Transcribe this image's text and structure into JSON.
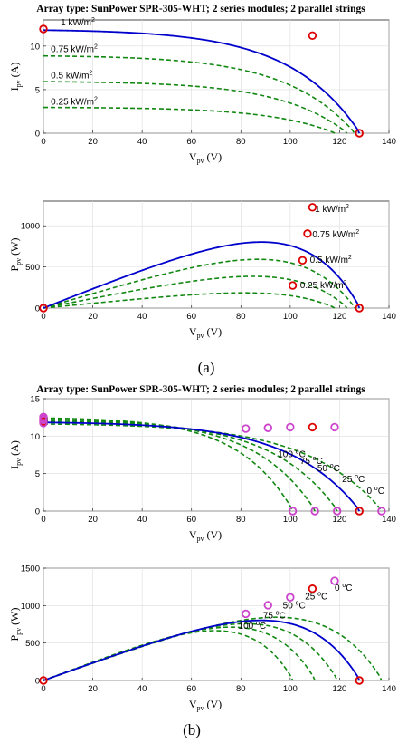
{
  "chart_data": [
    {
      "id": "a1",
      "type": "line",
      "title": "Array type: SunPower SPR-305-WHT; 2 series modules; 2 parallel strings",
      "xlabel": "V",
      "xlabel_sub": "pv",
      "xlabel_unit": " (V)",
      "ylabel": "I",
      "ylabel_sub": "pv",
      "ylabel_unit": " (A)",
      "xlim": [
        0,
        140
      ],
      "ylim": [
        0,
        13
      ],
      "xticks": [
        "0",
        "20",
        "40",
        "60",
        "80",
        "100",
        "120",
        "140"
      ],
      "yticks": [
        "0",
        "5",
        "10"
      ],
      "grid": true,
      "series": [
        {
          "name": "1 kW/m2",
          "style": "solid",
          "color": "#0000cc",
          "isc": 11.96,
          "voc": 128,
          "sharp": 4.5
        },
        {
          "name": "0.75 kW/m2",
          "style": "dashed",
          "color": "#118811",
          "isc": 8.97,
          "voc": 126,
          "sharp": 4.5
        },
        {
          "name": "0.5 kW/m2",
          "style": "dashed",
          "color": "#118811",
          "isc": 5.98,
          "voc": 123,
          "sharp": 4.5
        },
        {
          "name": "0.25 kW/m2",
          "style": "dashed",
          "color": "#118811",
          "isc": 2.99,
          "voc": 118,
          "sharp": 4.5
        }
      ],
      "markers": [
        {
          "x": 0,
          "y": 11.96,
          "color": "#dd0000"
        },
        {
          "x": 109,
          "y": 11.2,
          "color": "#dd0000"
        },
        {
          "x": 128,
          "y": 0,
          "color": "#dd0000"
        }
      ],
      "annotations": [
        {
          "text": "1 kW/m",
          "sup": "2",
          "x": 7,
          "y": 12.4
        },
        {
          "text": "0.75 kW/m",
          "sup": "2",
          "x": 3,
          "y": 9.3
        },
        {
          "text": "0.5 kW/m",
          "sup": "2",
          "x": 3,
          "y": 6.3
        },
        {
          "text": "0.25 kW/m",
          "sup": "2",
          "x": 3,
          "y": 3.3
        }
      ]
    },
    {
      "id": "a2",
      "type": "line",
      "xlabel": "V",
      "xlabel_sub": "pv",
      "xlabel_unit": " (V)",
      "ylabel": "P",
      "ylabel_sub": "pv",
      "ylabel_unit": " (W)",
      "xlim": [
        0,
        140
      ],
      "ylim": [
        0,
        1300
      ],
      "xticks": [
        "0",
        "20",
        "40",
        "60",
        "80",
        "100",
        "120",
        "140"
      ],
      "yticks": [
        "0",
        "500",
        "1000"
      ],
      "grid": true,
      "power_of": "a1",
      "markers": [
        {
          "x": 0,
          "y": 0,
          "color": "#dd0000",
          "hollow": true
        },
        {
          "x": 109,
          "y": 1225,
          "color": "#dd0000",
          "hollow": true
        },
        {
          "x": 107,
          "y": 905,
          "color": "#dd0000",
          "hollow": true
        },
        {
          "x": 105,
          "y": 580,
          "color": "#dd0000",
          "hollow": true
        },
        {
          "x": 101,
          "y": 275,
          "color": "#dd0000",
          "hollow": true
        },
        {
          "x": 128,
          "y": 0,
          "color": "#dd0000",
          "hollow": true
        }
      ],
      "annotations": [
        {
          "text": "1 kW/m",
          "sup": "2",
          "x": 110,
          "y": 1170
        },
        {
          "text": "0.75 kW/m",
          "sup": "2",
          "x": 109,
          "y": 860
        },
        {
          "text": "0.5 kW/m",
          "sup": "2",
          "x": 108,
          "y": 550
        },
        {
          "text": "0.25 kW/m",
          "sup": "2",
          "x": 104,
          "y": 245
        }
      ]
    },
    {
      "id": "b1",
      "type": "line",
      "title": "Array type: SunPower SPR-305-WHT; 2 series modules; 2 parallel strings",
      "xlabel": "V",
      "xlabel_sub": "pv",
      "xlabel_unit": " (V)",
      "ylabel": "I",
      "ylabel_sub": "pv",
      "ylabel_unit": " (A)",
      "xlim": [
        0,
        140
      ],
      "ylim": [
        0,
        15
      ],
      "xticks": [
        "0",
        "20",
        "40",
        "60",
        "80",
        "100",
        "120",
        "140"
      ],
      "yticks": [
        "0",
        "5",
        "10",
        "15"
      ],
      "grid": true,
      "series": [
        {
          "name": "25 °C",
          "style": "solid",
          "color": "#0000cc",
          "isc": 11.96,
          "voc": 128,
          "sharp": 4.5
        },
        {
          "name": "0 °C",
          "style": "dashed",
          "color": "#118811",
          "isc": 11.75,
          "voc": 137,
          "sharp": 4.5
        },
        {
          "name": "50 °C",
          "style": "dashed",
          "color": "#118811",
          "isc": 12.15,
          "voc": 119,
          "sharp": 4.5
        },
        {
          "name": "75 °C",
          "style": "dashed",
          "color": "#118811",
          "isc": 12.35,
          "voc": 110,
          "sharp": 4.5
        },
        {
          "name": "100 °C",
          "style": "dashed",
          "color": "#118811",
          "isc": 12.55,
          "voc": 101,
          "sharp": 4.5
        }
      ],
      "markers": [
        {
          "x": 0,
          "y": 11.96,
          "color": "#dd0000"
        },
        {
          "x": 0,
          "y": 11.75,
          "color": "#cc44cc"
        },
        {
          "x": 0,
          "y": 12.15,
          "color": "#cc44cc"
        },
        {
          "x": 0,
          "y": 12.35,
          "color": "#cc44cc"
        },
        {
          "x": 0,
          "y": 12.55,
          "color": "#cc44cc"
        },
        {
          "x": 109,
          "y": 11.2,
          "color": "#dd0000"
        },
        {
          "x": 128,
          "y": 0,
          "color": "#dd0000"
        },
        {
          "x": 118,
          "y": 11.2,
          "color": "#cc44cc"
        },
        {
          "x": 100,
          "y": 11.2,
          "color": "#cc44cc"
        },
        {
          "x": 91,
          "y": 11.1,
          "color": "#cc44cc"
        },
        {
          "x": 82,
          "y": 11.0,
          "color": "#cc44cc"
        },
        {
          "x": 101,
          "y": 0,
          "color": "#cc44cc"
        },
        {
          "x": 110,
          "y": 0,
          "color": "#cc44cc"
        },
        {
          "x": 119,
          "y": 0,
          "color": "#cc44cc"
        },
        {
          "x": 137,
          "y": 0,
          "color": "#cc44cc"
        }
      ],
      "annotations": [
        {
          "text": "100 ",
          "sup": "o",
          "tail": "C",
          "x": 95,
          "y": 7.2,
          "rotate": 0
        },
        {
          "text": "75 ",
          "sup": "o",
          "tail": "C",
          "x": 104,
          "y": 6.3,
          "rotate": 0
        },
        {
          "text": "50 ",
          "sup": "o",
          "tail": "C",
          "x": 111,
          "y": 5.3,
          "rotate": 0
        },
        {
          "text": "25 ",
          "sup": "o",
          "tail": "C",
          "x": 121,
          "y": 3.9,
          "rotate": 0
        },
        {
          "text": "0 ",
          "sup": "o",
          "tail": "C",
          "x": 131,
          "y": 2.3,
          "rotate": 0
        }
      ]
    },
    {
      "id": "b2",
      "type": "line",
      "xlabel": "V",
      "xlabel_sub": "pv",
      "xlabel_unit": " (V)",
      "ylabel": "P",
      "ylabel_sub": "pv",
      "ylabel_unit": " (W)",
      "xlim": [
        0,
        140
      ],
      "ylim": [
        0,
        1500
      ],
      "xticks": [
        "0",
        "20",
        "40",
        "60",
        "80",
        "100",
        "120",
        "140"
      ],
      "yticks": [
        "0",
        "500",
        "1000",
        "1500"
      ],
      "grid": true,
      "power_of": "b1",
      "markers": [
        {
          "x": 0,
          "y": 0,
          "color": "#dd0000",
          "hollow": true
        },
        {
          "x": 109,
          "y": 1225,
          "color": "#dd0000",
          "hollow": true
        },
        {
          "x": 128,
          "y": 0,
          "color": "#dd0000",
          "hollow": true
        },
        {
          "x": 118,
          "y": 1330,
          "color": "#cc44cc",
          "hollow": true
        },
        {
          "x": 100,
          "y": 1110,
          "color": "#cc44cc",
          "hollow": true
        },
        {
          "x": 91,
          "y": 1005,
          "color": "#cc44cc",
          "hollow": true
        },
        {
          "x": 82,
          "y": 890,
          "color": "#cc44cc",
          "hollow": true
        }
      ],
      "annotations": [
        {
          "text": "0 ",
          "sup": "o",
          "tail": "C",
          "x": 118,
          "y": 1200
        },
        {
          "text": "25 ",
          "sup": "o",
          "tail": "C",
          "x": 106,
          "y": 1080
        },
        {
          "text": "50 ",
          "sup": "o",
          "tail": "C",
          "x": 97,
          "y": 960
        },
        {
          "text": "75 ",
          "sup": "o",
          "tail": "C",
          "x": 89,
          "y": 830
        },
        {
          "text": "100 ",
          "sup": "o",
          "tail": "C",
          "x": 79,
          "y": 690
        }
      ]
    }
  ],
  "captions": {
    "a": "(a)",
    "b": "(b)"
  }
}
